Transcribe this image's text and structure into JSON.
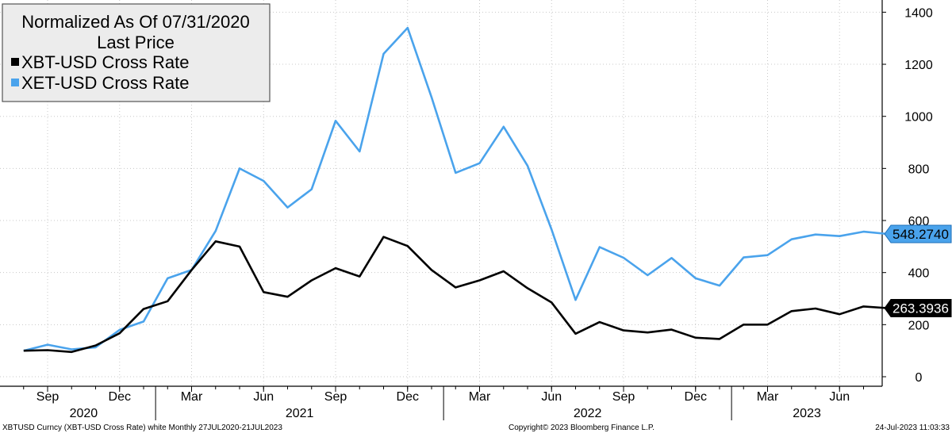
{
  "chart_data": {
    "type": "line",
    "title": "Normalized As Of 07/31/2020",
    "subtitle": "Last Price",
    "ylim": [
      -20,
      1410
    ],
    "y_ticks": [
      0,
      200,
      400,
      600,
      800,
      1000,
      1200,
      1400
    ],
    "y_tick_labels": [
      "0",
      "200",
      "400",
      "600",
      "800",
      "1000",
      "1200",
      "1400"
    ],
    "y_axis_side": "right",
    "grid": "dotted",
    "legend_position": "top-left",
    "x_month_ticks": [
      {
        "label": "Sep",
        "index": 1
      },
      {
        "label": "Dec",
        "index": 4
      },
      {
        "label": "Mar",
        "index": 7
      },
      {
        "label": "Jun",
        "index": 10
      },
      {
        "label": "Sep",
        "index": 13
      },
      {
        "label": "Dec",
        "index": 16
      },
      {
        "label": "Mar",
        "index": 19
      },
      {
        "label": "Jun",
        "index": 22
      },
      {
        "label": "Sep",
        "index": 25
      },
      {
        "label": "Dec",
        "index": 28
      },
      {
        "label": "Mar",
        "index": 31
      },
      {
        "label": "Jun",
        "index": 34
      }
    ],
    "x_year_labels": [
      {
        "label": "2020",
        "from": -1.5,
        "to": 4.5
      },
      {
        "label": "2021",
        "from": 4.5,
        "to": 16.5
      },
      {
        "label": "2022",
        "from": 16.5,
        "to": 28.5
      },
      {
        "label": "2023",
        "from": 28.5,
        "to": 35.2
      }
    ],
    "categories": [
      "Jul 2020",
      "Aug 2020",
      "Sep 2020",
      "Oct 2020",
      "Nov 2020",
      "Dec 2020",
      "Jan 2021",
      "Feb 2021",
      "Mar 2021",
      "Apr 2021",
      "May 2021",
      "Jun 2021",
      "Jul 2021",
      "Aug 2021",
      "Sep 2021",
      "Oct 2021",
      "Nov 2021",
      "Dec 2021",
      "Jan 2022",
      "Feb 2022",
      "Mar 2022",
      "Apr 2022",
      "May 2022",
      "Jun 2022",
      "Jul 2022",
      "Aug 2022",
      "Sep 2022",
      "Oct 2022",
      "Nov 2022",
      "Dec 2022",
      "Jan 2023",
      "Feb 2023",
      "Mar 2023",
      "Apr 2023",
      "May 2023",
      "Jun 2023",
      "Jul 2023"
    ],
    "series": [
      {
        "name": "XBT-USD Cross Rate",
        "color": "#000000",
        "values": [
          100,
          102,
          95,
          120,
          167,
          260,
          290,
          410,
          520,
          500,
          325,
          307,
          370,
          417,
          385,
          537,
          502,
          410,
          343,
          370,
          405,
          340,
          285,
          165,
          210,
          178,
          170,
          181,
          150,
          145,
          200,
          200,
          252,
          262,
          240,
          270,
          263.3936
        ],
        "last_value_label": "263.3936",
        "badge_fill": "#000000",
        "badge_text_color": "#ffffff"
      },
      {
        "name": "XET-USD Cross Rate",
        "color": "#4aa3ec",
        "values": [
          100,
          123,
          105,
          113,
          180,
          212,
          378,
          410,
          560,
          800,
          752,
          650,
          720,
          983,
          865,
          1240,
          1340,
          1073,
          783,
          820,
          960,
          810,
          565,
          295,
          498,
          457,
          390,
          456,
          378,
          350,
          458,
          467,
          528,
          546,
          540,
          557,
          548.274
        ],
        "last_value_label": "548.2740",
        "badge_fill": "#4aa3ec",
        "badge_text_color": "#000000"
      }
    ]
  },
  "footer": {
    "left": "XBTUSD Curncy (XBT-USD Cross Rate) white  Monthly 27JUL2020-21JUL2023",
    "center": "Copyright© 2023 Bloomberg Finance L.P.",
    "right": "24-Jul-2023 11:03:33"
  }
}
